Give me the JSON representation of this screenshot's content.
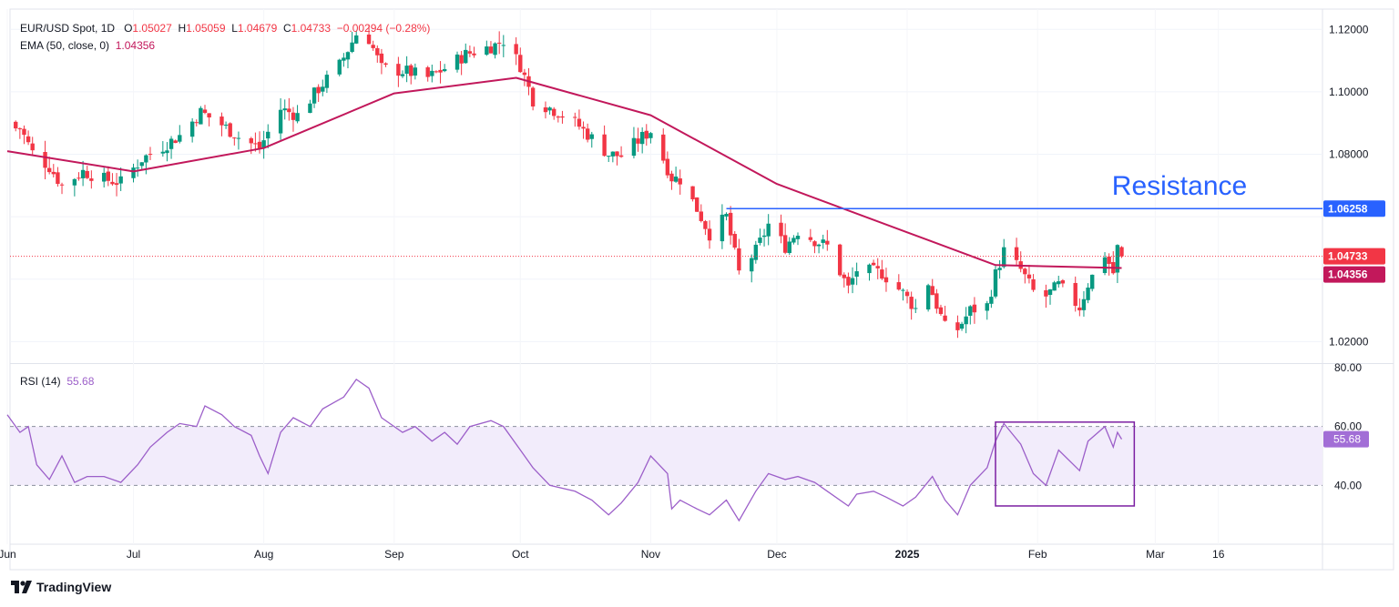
{
  "header": {
    "symbol": "EUR/USD Spot, 1D",
    "o_label": "O",
    "o_value": "1.05027",
    "h_label": "H",
    "h_value": "1.05059",
    "l_label": "L",
    "l_value": "1.04679",
    "c_label": "C",
    "c_value": "1.04733",
    "change": "−0.00294 (−0.28%)",
    "ema_label": "EMA (50, close, 0)",
    "ema_value": "1.04356",
    "rsi_label": "RSI (14)",
    "rsi_value": "55.68"
  },
  "branding": {
    "name": "TradingView"
  },
  "colors": {
    "up": "#089981",
    "down": "#f23645",
    "ema": "#c2185b",
    "resistance": "#2962ff",
    "rsi": "#9c5fc9",
    "rsi_band": "#f2ecfb",
    "box": "#7b1fa2"
  },
  "chart_data": [
    {
      "type": "candlestick",
      "title": "EUR/USD Spot, 1D",
      "ylim": [
        1.0134,
        1.1265
      ],
      "yticks": [
        "1.12000",
        "1.10000",
        "1.08000",
        "1.02000"
      ],
      "x_tick_labels": [
        "Jun",
        "Jul",
        "Aug",
        "Sep",
        "Oct",
        "Nov",
        "Dec",
        "2025",
        "Feb",
        "Mar",
        "16"
      ],
      "x_tick_dates": [
        "2024-06-01",
        "2024-07-01",
        "2024-08-01",
        "2024-09-01",
        "2024-10-01",
        "2024-11-01",
        "2024-12-01",
        "2025-01-01",
        "2025-02-01",
        "2025-03-01",
        "2025-03-16"
      ],
      "date_start": "2024-06-01",
      "close_anchors": [
        [
          "2024-06-01",
          1.088
        ],
        [
          "2024-06-04",
          1.0885
        ],
        [
          "2024-06-07",
          1.0805
        ],
        [
          "2024-06-11",
          1.076
        ],
        [
          "2024-06-14",
          1.07
        ],
        [
          "2024-06-19",
          1.0745
        ],
        [
          "2024-06-24",
          1.072
        ],
        [
          "2024-06-28",
          1.071
        ],
        [
          "2024-07-03",
          1.0785
        ],
        [
          "2024-07-08",
          1.0825
        ],
        [
          "2024-07-12",
          1.086
        ],
        [
          "2024-07-17",
          1.0935
        ],
        [
          "2024-07-22",
          1.0895
        ],
        [
          "2024-07-26",
          1.0855
        ],
        [
          "2024-07-31",
          1.082
        ],
        [
          "2024-08-05",
          1.0945
        ],
        [
          "2024-08-09",
          1.0925
        ],
        [
          "2024-08-14",
          1.101
        ],
        [
          "2024-08-19",
          1.1085
        ],
        [
          "2024-08-23",
          1.1185
        ],
        [
          "2024-08-26",
          1.117
        ],
        [
          "2024-08-29",
          1.1075
        ],
        [
          "2024-09-04",
          1.1065
        ],
        [
          "2024-09-09",
          1.1045
        ],
        [
          "2024-09-13",
          1.1075
        ],
        [
          "2024-09-18",
          1.112
        ],
        [
          "2024-09-25",
          1.115
        ],
        [
          "2024-09-27",
          1.1165
        ],
        [
          "2024-10-01",
          1.1085
        ],
        [
          "2024-10-04",
          1.0975
        ],
        [
          "2024-10-10",
          1.0935
        ],
        [
          "2024-10-15",
          1.089
        ],
        [
          "2024-10-22",
          1.08
        ],
        [
          "2024-10-25",
          1.0795
        ],
        [
          "2024-10-30",
          1.0855
        ],
        [
          "2024-11-01",
          1.0875
        ],
        [
          "2024-11-06",
          1.0725
        ],
        [
          "2024-11-08",
          1.072
        ],
        [
          "2024-11-12",
          1.0625
        ],
        [
          "2024-11-15",
          1.0545
        ],
        [
          "2024-11-19",
          1.06
        ],
        [
          "2024-11-22",
          1.042
        ],
        [
          "2024-11-26",
          1.049
        ],
        [
          "2024-11-29",
          1.0575
        ],
        [
          "2024-12-03",
          1.0505
        ],
        [
          "2024-12-06",
          1.0555
        ],
        [
          "2024-12-10",
          1.0525
        ],
        [
          "2024-12-13",
          1.0505
        ],
        [
          "2024-12-18",
          1.037
        ],
        [
          "2024-12-20",
          1.043
        ],
        [
          "2024-12-26",
          1.042
        ],
        [
          "2024-12-31",
          1.0355
        ],
        [
          "2025-01-03",
          1.0305
        ],
        [
          "2025-01-06",
          1.039
        ],
        [
          "2025-01-10",
          1.0245
        ],
        [
          "2025-01-13",
          1.024
        ],
        [
          "2025-01-16",
          1.03
        ],
        [
          "2025-01-20",
          1.0315
        ],
        [
          "2025-01-22",
          1.0415
        ],
        [
          "2025-01-24",
          1.049
        ],
        [
          "2025-01-28",
          1.043
        ],
        [
          "2025-01-31",
          1.036
        ],
        [
          "2025-02-03",
          1.0345
        ],
        [
          "2025-02-06",
          1.038
        ],
        [
          "2025-02-11",
          1.031
        ],
        [
          "2025-02-13",
          1.0385
        ],
        [
          "2025-02-17",
          1.048
        ],
        [
          "2025-02-19",
          1.042
        ],
        [
          "2025-02-20",
          1.05
        ],
        [
          "2025-02-21",
          1.04733
        ]
      ],
      "last_ohlc": {
        "open": 1.05027,
        "high": 1.05059,
        "low": 1.04679,
        "close": 1.04733
      },
      "ema": {
        "label": "EMA (50, close, 0)",
        "value": 1.04356,
        "points": [
          [
            "2024-06-01",
            1.081
          ],
          [
            "2024-07-01",
            1.0745
          ],
          [
            "2024-08-01",
            1.082
          ],
          [
            "2024-09-01",
            1.0995
          ],
          [
            "2024-09-30",
            1.1045
          ],
          [
            "2024-11-01",
            1.0925
          ],
          [
            "2024-12-01",
            1.0705
          ],
          [
            "2025-01-01",
            1.055
          ],
          [
            "2025-01-22",
            1.0445
          ],
          [
            "2025-02-21",
            1.04356
          ]
        ]
      },
      "resistance": {
        "label": "Resistance",
        "value": 1.06258,
        "value_label": "1.06258",
        "from_date": "2024-11-19"
      },
      "price_tags": [
        {
          "value": 1.04733,
          "text": "1.04733",
          "color": "#f23645"
        },
        {
          "value": 1.04356,
          "text": "1.04356",
          "color": "#c2185b"
        }
      ]
    },
    {
      "type": "line",
      "title": "RSI (14)",
      "ylim": [
        20,
        80
      ],
      "yticks": [
        "80.00",
        "60.00",
        "40.00"
      ],
      "band": [
        40,
        60
      ],
      "last_value": 55.68,
      "last_label": "55.68",
      "points": [
        [
          "2024-06-01",
          64
        ],
        [
          "2024-06-04",
          58
        ],
        [
          "2024-06-06",
          60
        ],
        [
          "2024-06-08",
          47
        ],
        [
          "2024-06-11",
          42
        ],
        [
          "2024-06-14",
          50
        ],
        [
          "2024-06-17",
          41
        ],
        [
          "2024-06-20",
          43
        ],
        [
          "2024-06-24",
          43
        ],
        [
          "2024-06-28",
          41
        ],
        [
          "2024-07-02",
          47
        ],
        [
          "2024-07-05",
          53
        ],
        [
          "2024-07-09",
          58
        ],
        [
          "2024-07-12",
          61
        ],
        [
          "2024-07-16",
          60
        ],
        [
          "2024-07-18",
          67
        ],
        [
          "2024-07-22",
          64
        ],
        [
          "2024-07-25",
          60
        ],
        [
          "2024-07-29",
          57
        ],
        [
          "2024-07-31",
          50
        ],
        [
          "2024-08-02",
          44
        ],
        [
          "2024-08-05",
          58
        ],
        [
          "2024-08-08",
          63
        ],
        [
          "2024-08-12",
          60
        ],
        [
          "2024-08-15",
          66
        ],
        [
          "2024-08-20",
          70
        ],
        [
          "2024-08-23",
          76
        ],
        [
          "2024-08-26",
          73
        ],
        [
          "2024-08-29",
          63
        ],
        [
          "2024-09-03",
          58
        ],
        [
          "2024-09-06",
          60
        ],
        [
          "2024-09-10",
          55
        ],
        [
          "2024-09-13",
          58
        ],
        [
          "2024-09-16",
          54
        ],
        [
          "2024-09-19",
          60
        ],
        [
          "2024-09-24",
          62
        ],
        [
          "2024-09-27",
          60
        ],
        [
          "2024-10-01",
          52
        ],
        [
          "2024-10-04",
          46
        ],
        [
          "2024-10-08",
          40
        ],
        [
          "2024-10-14",
          38
        ],
        [
          "2024-10-18",
          35
        ],
        [
          "2024-10-22",
          30
        ],
        [
          "2024-10-25",
          34
        ],
        [
          "2024-10-29",
          41
        ],
        [
          "2024-11-01",
          50
        ],
        [
          "2024-11-05",
          44
        ],
        [
          "2024-11-06",
          32
        ],
        [
          "2024-11-08",
          35
        ],
        [
          "2024-11-12",
          32
        ],
        [
          "2024-11-15",
          30
        ],
        [
          "2024-11-19",
          35
        ],
        [
          "2024-11-22",
          28
        ],
        [
          "2024-11-26",
          38
        ],
        [
          "2024-11-29",
          44
        ],
        [
          "2024-12-03",
          42
        ],
        [
          "2024-12-06",
          43
        ],
        [
          "2024-12-10",
          41
        ],
        [
          "2024-12-13",
          38
        ],
        [
          "2024-12-18",
          33
        ],
        [
          "2024-12-20",
          37
        ],
        [
          "2024-12-24",
          38
        ],
        [
          "2024-12-27",
          36
        ],
        [
          "2024-12-31",
          33
        ],
        [
          "2025-01-03",
          36
        ],
        [
          "2025-01-07",
          43
        ],
        [
          "2025-01-10",
          35
        ],
        [
          "2025-01-13",
          30
        ],
        [
          "2025-01-16",
          40
        ],
        [
          "2025-01-20",
          46
        ],
        [
          "2025-01-22",
          55
        ],
        [
          "2025-01-24",
          61
        ],
        [
          "2025-01-28",
          54
        ],
        [
          "2025-01-31",
          44
        ],
        [
          "2025-02-03",
          40
        ],
        [
          "2025-02-06",
          52
        ],
        [
          "2025-02-11",
          45
        ],
        [
          "2025-02-13",
          55
        ],
        [
          "2025-02-17",
          60
        ],
        [
          "2025-02-19",
          53
        ],
        [
          "2025-02-20",
          58
        ],
        [
          "2025-02-21",
          55.68
        ]
      ],
      "highlight_box": {
        "from_date": "2025-01-22",
        "to_date": "2025-02-24",
        "y_top": 61.5,
        "y_bottom": 33
      }
    }
  ]
}
